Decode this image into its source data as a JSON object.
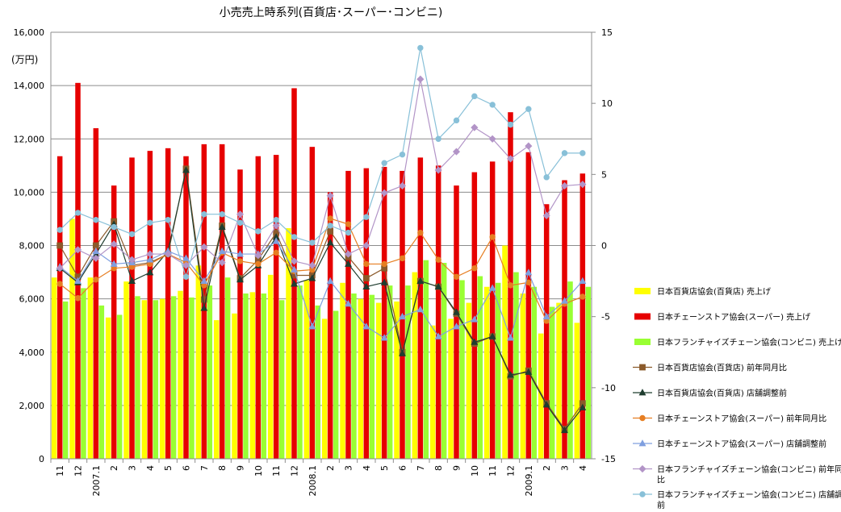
{
  "chart_data": {
    "type": "bar",
    "title": "小売売上時系列(百貨店･スーパー･コンビニ)",
    "ylabel": "(万円)",
    "y_left_lim": [
      0,
      16000
    ],
    "y_left_ticks": [
      "0",
      "2,000",
      "4,000",
      "6,000",
      "8,000",
      "10,000",
      "12,000",
      "14,000",
      "16,000"
    ],
    "y_right_lim": [
      -15,
      15
    ],
    "y_right_ticks": [
      "-15",
      "-10",
      "-5",
      "0",
      "5",
      "10",
      "15"
    ],
    "grid": "horizontal",
    "legend_position": "right",
    "categories": [
      "11",
      "12",
      "2007.1",
      "2",
      "3",
      "4",
      "5",
      "6",
      "7",
      "8",
      "9",
      "10",
      "11",
      "12",
      "2008.1",
      "2",
      "3",
      "4",
      "5",
      "6",
      "7",
      "8",
      "9",
      "10",
      "11",
      "12",
      "2009.1",
      "2",
      "3",
      "4"
    ],
    "bar_series": [
      {
        "name": "日本百貨店協会(百貨店) 売上げ",
        "color": "#ffff00",
        "values": [
          6800,
          9000,
          6800,
          5300,
          6650,
          5950,
          6000,
          6300,
          7250,
          5200,
          5450,
          6250,
          6900,
          8650,
          6700,
          5250,
          6600,
          6000,
          5850,
          5900,
          7000,
          5000,
          5250,
          5850,
          6450,
          8000,
          6200,
          4700,
          5850,
          5100
        ]
      },
      {
        "name": "日本チェーンストア協会(スーパー) 売上げ",
        "color": "#e60000",
        "values": [
          11350,
          14100,
          12400,
          10250,
          11300,
          11550,
          11650,
          11350,
          11800,
          11800,
          10850,
          11350,
          11400,
          13900,
          11700,
          10000,
          10800,
          10900,
          10950,
          10800,
          11300,
          11000,
          10250,
          10750,
          11150,
          13000,
          11500,
          9550,
          10450,
          10700
        ]
      },
      {
        "name": "日本フランチャイズチェーン協会(コンビニ) 売上げ",
        "color": "#99ff33",
        "values": [
          5900,
          6400,
          5750,
          5400,
          6100,
          5950,
          6100,
          6050,
          6500,
          6800,
          6200,
          6200,
          5950,
          6500,
          5750,
          5550,
          6200,
          6150,
          6500,
          6500,
          7450,
          7350,
          6700,
          6850,
          6600,
          7000,
          6450,
          5700,
          6650,
          6450
        ]
      }
    ],
    "line_series": [
      {
        "name": "日本百貨店協会(百貨店) 前年同月比",
        "color": "#8b5a2b",
        "marker": "square",
        "values": [
          0,
          -2.2,
          0,
          1.7,
          -1.4,
          -1.2,
          -0.6,
          5.4,
          -3.8,
          1.4,
          -2.3,
          -1.0,
          0.9,
          -2.1,
          -2.1,
          1.0,
          -0.8,
          -2.3,
          -1.6,
          -7.5,
          -2.5,
          -2.9,
          -4.8,
          -6.9,
          -6.4,
          -9.2,
          -8.8,
          -11.1,
          -12.9,
          -11.1
        ]
      },
      {
        "name": "日本百貨店協会(百貨店) 店舗調整前",
        "color": "#1f3d2f",
        "marker": "triangle",
        "values": [
          -1.6,
          -2.6,
          -0.6,
          1.5,
          -2.5,
          -1.9,
          -0.4,
          5.3,
          -4.4,
          1.3,
          -2.4,
          -1.4,
          0.6,
          -2.7,
          -2.3,
          0.2,
          -1.3,
          -2.9,
          -2.6,
          -7.6,
          -2.5,
          -2.9,
          -4.7,
          -6.8,
          -6.4,
          -9.1,
          -8.9,
          -11.2,
          -13.0,
          -11.4
        ]
      },
      {
        "name": "日本チェーンストア協会(スーパー) 前年同月比",
        "color": "#e67e22",
        "marker": "circle",
        "values": [
          -2.7,
          -3.7,
          -2.4,
          -1.6,
          -1.5,
          -1.3,
          -0.6,
          -1.2,
          -2.8,
          -0.5,
          -1.1,
          -1.3,
          -0.5,
          -1.8,
          -1.7,
          1.9,
          1.5,
          -1.3,
          -1.3,
          -0.9,
          0.9,
          -1.0,
          -2.2,
          -1.6,
          0.6,
          -2.8,
          -2.6,
          -5.3,
          -4.1,
          -3.6
        ]
      },
      {
        "name": "日本チェーンストア協会(スーパー) 店舗調整前",
        "color": "#7f9fdf",
        "marker": "triangle",
        "values": [
          -1.5,
          -2.5,
          -0.4,
          -1.3,
          -1.2,
          -1.0,
          -0.4,
          -0.9,
          -2.5,
          -0.4,
          -0.6,
          -0.6,
          0.3,
          -1.7,
          -5.7,
          -2.5,
          -4.1,
          -5.7,
          -6.5,
          -5.0,
          -4.5,
          -6.4,
          -5.7,
          -5.2,
          -3.0,
          -6.5,
          -1.9,
          -5.0,
          -3.9,
          -2.5
        ]
      },
      {
        "name": "日本フランチャイズチェーン協会(コンビニ) 前年同月比",
        "color": "#b294c7",
        "marker": "diamond",
        "values": [
          -1.6,
          -0.3,
          -0.9,
          0.1,
          -1.0,
          -0.6,
          -0.6,
          -1.4,
          -0.1,
          -1.2,
          2.2,
          -0.7,
          1.4,
          -1.1,
          -1.4,
          3.5,
          -0.6,
          0.0,
          3.7,
          4.2,
          11.7,
          5.3,
          6.6,
          8.3,
          7.5,
          6.1,
          7.0,
          2.1,
          4.2,
          4.3
        ]
      },
      {
        "name": "日本フランチャイズチェーン協会(コンビニ) 店舗調整前",
        "color": "#88c0d8",
        "marker": "circle",
        "values": [
          1.1,
          2.3,
          1.8,
          1.3,
          0.8,
          1.6,
          1.8,
          -2.2,
          2.2,
          2.2,
          1.6,
          1.0,
          1.8,
          0.6,
          0.2,
          1.4,
          0.9,
          2.0,
          5.8,
          6.4,
          13.9,
          7.5,
          8.8,
          10.5,
          9.9,
          8.5,
          9.6,
          4.8,
          6.5,
          6.5
        ]
      }
    ]
  }
}
